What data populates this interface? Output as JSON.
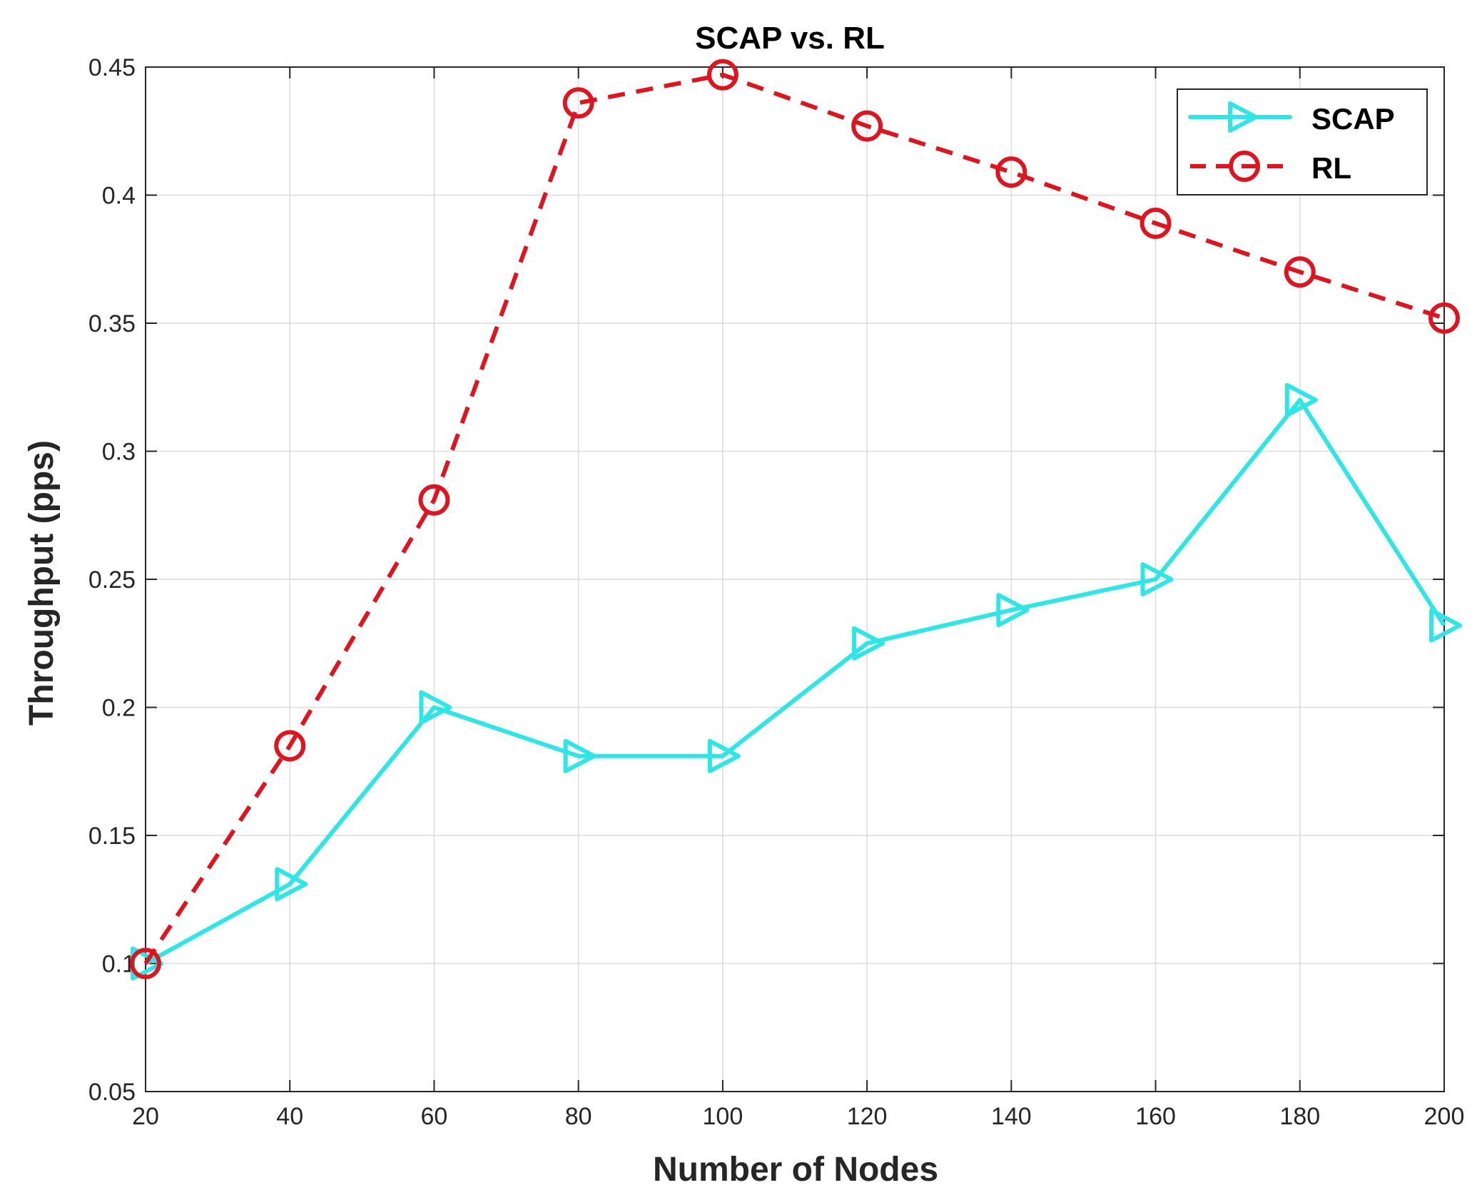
{
  "chart_data": {
    "type": "line",
    "title": "SCAP vs. RL",
    "xlabel": "Number of Nodes",
    "ylabel": "Throughput (pps)",
    "x": [
      20,
      40,
      60,
      80,
      100,
      120,
      140,
      160,
      180,
      200
    ],
    "xlim": [
      20,
      200
    ],
    "ylim": [
      0.05,
      0.45
    ],
    "xticks": [
      20,
      40,
      60,
      80,
      100,
      120,
      140,
      160,
      180,
      200
    ],
    "yticks": [
      0.05,
      0.1,
      0.15,
      0.2,
      0.25,
      0.3,
      0.35,
      0.4,
      0.45
    ],
    "xtick_labels": [
      "20",
      "40",
      "60",
      "80",
      "100",
      "120",
      "140",
      "160",
      "180",
      "200"
    ],
    "ytick_labels": [
      "0.05",
      "0.1",
      "0.15",
      "0.2",
      "0.25",
      "0.3",
      "0.35",
      "0.4",
      "0.45"
    ],
    "grid": true,
    "legend_position": "top-right",
    "series": [
      {
        "name": "SCAP",
        "color": "#2ee6e6",
        "line_style": "solid",
        "marker": "triangle-right",
        "values": [
          0.1,
          0.131,
          0.2,
          0.181,
          0.181,
          0.225,
          0.238,
          0.25,
          0.32,
          0.232
        ]
      },
      {
        "name": "RL",
        "color": "#e0141e",
        "line_style": "dashed",
        "marker": "circle",
        "values": [
          0.1,
          0.185,
          0.281,
          0.436,
          0.447,
          0.427,
          0.409,
          0.389,
          0.37,
          0.352
        ]
      }
    ],
    "ylabel_color": "#e0141e",
    "xlabel_color": "#262626"
  }
}
